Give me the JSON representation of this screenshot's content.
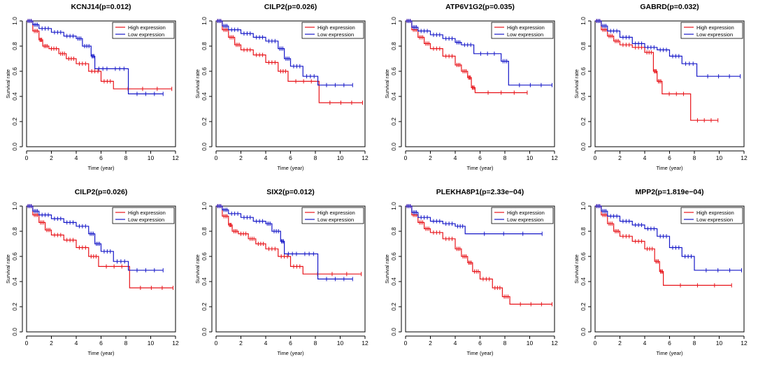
{
  "chart_data": [
    {
      "type": "line",
      "title": "KCNJ14(p=0.012)",
      "xlabel": "Time (year)",
      "ylabel": "Survival rate",
      "xlim": [
        0,
        12
      ],
      "ylim": [
        0,
        1
      ],
      "xticks": [
        "0",
        "2",
        "4",
        "6",
        "8",
        "10",
        "12"
      ],
      "yticks": [
        "0.0",
        "0.2",
        "0.4",
        "0.6",
        "0.8",
        "1.0"
      ],
      "legend_position": "top-right",
      "series": [
        {
          "name": "High expression",
          "color": "#e8141a",
          "x": [
            0,
            0.5,
            1,
            1.3,
            1.8,
            2.6,
            3.2,
            4,
            5,
            6,
            7,
            11.7
          ],
          "y": [
            1,
            0.92,
            0.85,
            0.8,
            0.78,
            0.74,
            0.7,
            0.66,
            0.6,
            0.52,
            0.46,
            0.46
          ]
        },
        {
          "name": "Low expression",
          "color": "#1618c8",
          "x": [
            0,
            0.5,
            1,
            2,
            3,
            4,
            4.5,
            5.2,
            5.5,
            6.8,
            8.2,
            11
          ],
          "y": [
            1,
            0.97,
            0.94,
            0.91,
            0.88,
            0.86,
            0.8,
            0.72,
            0.62,
            0.62,
            0.42,
            0.42
          ]
        }
      ]
    },
    {
      "type": "line",
      "title": "CILP2(p=0.026)",
      "xlabel": "Time (year)",
      "ylabel": "Survival rate",
      "xlim": [
        0,
        12
      ],
      "ylim": [
        0,
        1
      ],
      "xticks": [
        "0",
        "2",
        "4",
        "6",
        "8",
        "10",
        "12"
      ],
      "yticks": [
        "0.0",
        "0.2",
        "0.4",
        "0.6",
        "0.8",
        "1.0"
      ],
      "legend_position": "top-right",
      "series": [
        {
          "name": "High expression",
          "color": "#e8141a",
          "x": [
            0,
            0.5,
            1,
            1.5,
            2,
            3,
            4,
            5,
            5.8,
            8.3,
            11.8
          ],
          "y": [
            1,
            0.93,
            0.87,
            0.81,
            0.77,
            0.73,
            0.67,
            0.6,
            0.52,
            0.35,
            0.35
          ]
        },
        {
          "name": "Low expression",
          "color": "#1618c8",
          "x": [
            0,
            0.5,
            1,
            2,
            3,
            4,
            5,
            5.5,
            6,
            7,
            8.2,
            11
          ],
          "y": [
            1,
            0.96,
            0.93,
            0.9,
            0.87,
            0.84,
            0.78,
            0.7,
            0.64,
            0.56,
            0.49,
            0.49
          ]
        }
      ]
    },
    {
      "type": "line",
      "title": "ATP6V1G2(p=0.035)",
      "xlabel": "Time (year)",
      "ylabel": "Survival rate",
      "xlim": [
        0,
        12
      ],
      "ylim": [
        0,
        1
      ],
      "xticks": [
        "0",
        "2",
        "4",
        "6",
        "8",
        "10",
        "12"
      ],
      "yticks": [
        "0.0",
        "0.2",
        "0.4",
        "0.6",
        "0.8",
        "1.0"
      ],
      "legend_position": "top-right",
      "series": [
        {
          "name": "High expression",
          "color": "#e8141a",
          "x": [
            0,
            0.5,
            1,
            1.5,
            2,
            3,
            4,
            4.5,
            5,
            5.3,
            5.6,
            9.8
          ],
          "y": [
            1,
            0.93,
            0.87,
            0.82,
            0.78,
            0.72,
            0.65,
            0.6,
            0.55,
            0.47,
            0.43,
            0.43
          ]
        },
        {
          "name": "Low expression",
          "color": "#1618c8",
          "x": [
            0,
            0.5,
            1,
            2,
            3,
            4,
            4.5,
            5.5,
            7.7,
            8.3,
            11.8
          ],
          "y": [
            1,
            0.95,
            0.92,
            0.89,
            0.86,
            0.83,
            0.81,
            0.74,
            0.68,
            0.49,
            0.49
          ]
        }
      ]
    },
    {
      "type": "line",
      "title": "GABRD(p=0.032)",
      "xlabel": "Time (year)",
      "ylabel": "Survival rate",
      "xlim": [
        0,
        12
      ],
      "ylim": [
        0,
        1
      ],
      "xticks": [
        "0",
        "2",
        "4",
        "6",
        "8",
        "10",
        "12"
      ],
      "yticks": [
        "0.0",
        "0.2",
        "0.4",
        "0.6",
        "0.8",
        "1.0"
      ],
      "legend_position": "top-right",
      "series": [
        {
          "name": "High expression",
          "color": "#e8141a",
          "x": [
            0,
            0.5,
            1,
            1.5,
            2,
            3,
            4,
            4.7,
            5,
            5.4,
            7.7,
            9.9
          ],
          "y": [
            1,
            0.93,
            0.88,
            0.84,
            0.81,
            0.79,
            0.75,
            0.6,
            0.52,
            0.42,
            0.21,
            0.21
          ]
        },
        {
          "name": "Low expression",
          "color": "#1618c8",
          "x": [
            0,
            0.5,
            1,
            2,
            3,
            4,
            5,
            6,
            7,
            8.2,
            11.7
          ],
          "y": [
            1,
            0.96,
            0.92,
            0.87,
            0.82,
            0.79,
            0.77,
            0.72,
            0.66,
            0.56,
            0.56
          ]
        }
      ]
    },
    {
      "type": "line",
      "title": "CILP2(p=0.026)",
      "xlabel": "Time (year)",
      "ylabel": "Survival rate",
      "xlim": [
        0,
        12
      ],
      "ylim": [
        0,
        1
      ],
      "xticks": [
        "0",
        "2",
        "4",
        "6",
        "8",
        "10",
        "12"
      ],
      "yticks": [
        "0.0",
        "0.2",
        "0.4",
        "0.6",
        "0.8",
        "1.0"
      ],
      "legend_position": "top-right",
      "series": [
        {
          "name": "High expression",
          "color": "#e8141a",
          "x": [
            0,
            0.5,
            1,
            1.5,
            2,
            3,
            4,
            5,
            5.8,
            8.3,
            11.8
          ],
          "y": [
            1,
            0.93,
            0.87,
            0.81,
            0.77,
            0.73,
            0.67,
            0.6,
            0.52,
            0.35,
            0.35
          ]
        },
        {
          "name": "Low expression",
          "color": "#1618c8",
          "x": [
            0,
            0.5,
            1,
            2,
            3,
            4,
            5,
            5.5,
            6,
            7,
            8.2,
            11
          ],
          "y": [
            1,
            0.96,
            0.93,
            0.9,
            0.87,
            0.84,
            0.78,
            0.7,
            0.64,
            0.56,
            0.49,
            0.49
          ]
        }
      ]
    },
    {
      "type": "line",
      "title": "SIX2(p=0.012)",
      "xlabel": "Time (year)",
      "ylabel": "Survival rate",
      "xlim": [
        0,
        12
      ],
      "ylim": [
        0,
        1
      ],
      "xticks": [
        "0",
        "2",
        "4",
        "6",
        "8",
        "10",
        "12"
      ],
      "yticks": [
        "0.0",
        "0.2",
        "0.4",
        "0.6",
        "0.8",
        "1.0"
      ],
      "legend_position": "top-right",
      "series": [
        {
          "name": "High expression",
          "color": "#e8141a",
          "x": [
            0,
            0.5,
            1,
            1.3,
            1.8,
            2.6,
            3.2,
            4,
            5,
            6,
            7,
            11.7
          ],
          "y": [
            1,
            0.92,
            0.85,
            0.8,
            0.78,
            0.74,
            0.7,
            0.66,
            0.6,
            0.52,
            0.46,
            0.46
          ]
        },
        {
          "name": "Low expression",
          "color": "#1618c8",
          "x": [
            0,
            0.5,
            1,
            2,
            3,
            4,
            4.5,
            5.2,
            5.5,
            6.8,
            8.2,
            11
          ],
          "y": [
            1,
            0.97,
            0.94,
            0.91,
            0.88,
            0.86,
            0.8,
            0.72,
            0.62,
            0.62,
            0.42,
            0.42
          ]
        }
      ]
    },
    {
      "type": "line",
      "title": "PLEKHA8P1(p=2.33e−04)",
      "xlabel": "Time (year)",
      "ylabel": "Survival rate",
      "xlim": [
        0,
        12
      ],
      "ylim": [
        0,
        1
      ],
      "xticks": [
        "0",
        "2",
        "4",
        "6",
        "8",
        "10",
        "12"
      ],
      "yticks": [
        "0.0",
        "0.2",
        "0.4",
        "0.6",
        "0.8",
        "1.0"
      ],
      "legend_position": "top-right",
      "series": [
        {
          "name": "High expression",
          "color": "#e8141a",
          "x": [
            0,
            0.5,
            1,
            1.5,
            2,
            3,
            4,
            4.5,
            5,
            5.4,
            6,
            7,
            7.8,
            8.4,
            11.8
          ],
          "y": [
            1,
            0.93,
            0.87,
            0.82,
            0.79,
            0.74,
            0.66,
            0.6,
            0.55,
            0.48,
            0.42,
            0.35,
            0.28,
            0.22,
            0.22
          ]
        },
        {
          "name": "Low expression",
          "color": "#1618c8",
          "x": [
            0,
            0.5,
            1,
            2,
            3,
            4,
            4.8,
            11
          ],
          "y": [
            1,
            0.95,
            0.91,
            0.88,
            0.86,
            0.84,
            0.78,
            0.78
          ]
        }
      ]
    },
    {
      "type": "line",
      "title": "MPP2(p=1.819e−04)",
      "xlabel": "Time (year)",
      "ylabel": "Survival rate",
      "xlim": [
        0,
        12
      ],
      "ylim": [
        0,
        1
      ],
      "xticks": [
        "0",
        "2",
        "4",
        "6",
        "8",
        "10",
        "12"
      ],
      "yticks": [
        "0.0",
        "0.2",
        "0.4",
        "0.6",
        "0.8",
        "1.0"
      ],
      "legend_position": "top-right",
      "series": [
        {
          "name": "High expression",
          "color": "#e8141a",
          "x": [
            0,
            0.5,
            1,
            1.5,
            2,
            3,
            4,
            4.8,
            5.2,
            5.5,
            11
          ],
          "y": [
            1,
            0.93,
            0.86,
            0.8,
            0.76,
            0.72,
            0.66,
            0.56,
            0.48,
            0.37,
            0.37
          ]
        },
        {
          "name": "Low expression",
          "color": "#1618c8",
          "x": [
            0,
            0.5,
            1,
            2,
            3,
            4,
            5,
            6,
            7,
            8,
            11.8
          ],
          "y": [
            1,
            0.96,
            0.92,
            0.88,
            0.85,
            0.82,
            0.76,
            0.67,
            0.6,
            0.49,
            0.49
          ]
        }
      ]
    }
  ]
}
